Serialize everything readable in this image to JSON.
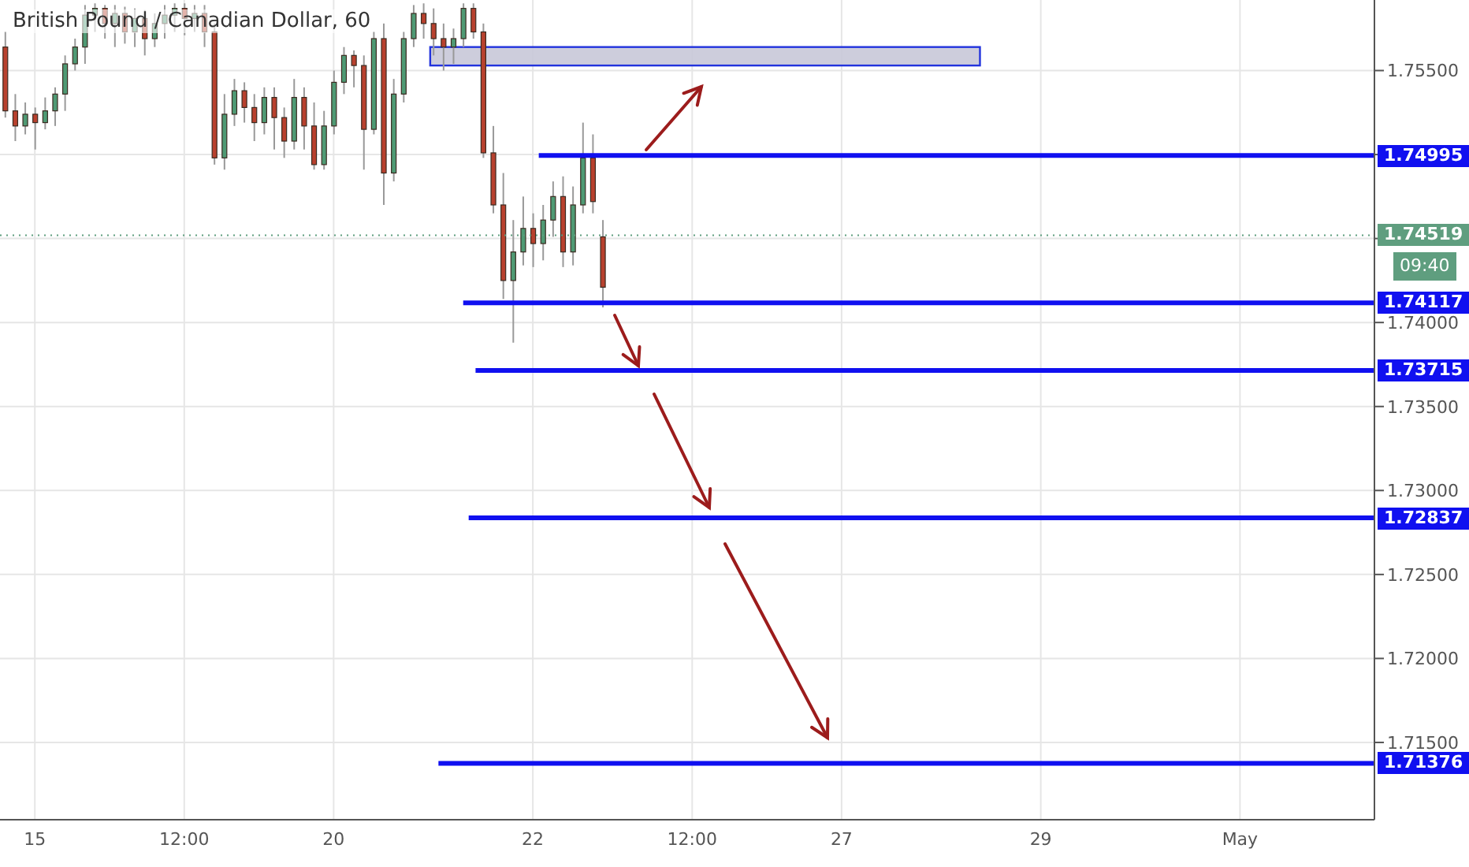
{
  "chart_data": {
    "type": "candlestick",
    "title": "British Pound / Canadian Dollar, 60",
    "categories": [
      null,
      null,
      null,
      "15",
      null,
      null,
      null,
      null,
      null,
      null,
      null,
      null,
      null,
      null,
      null,
      null,
      null,
      null,
      "12:00",
      null,
      null,
      null,
      null,
      null,
      null,
      null,
      null,
      null,
      null,
      null,
      null,
      null,
      null,
      "20",
      null,
      null,
      null,
      null,
      null,
      null,
      null,
      null,
      null,
      null,
      null,
      null,
      null,
      null,
      null,
      null,
      null,
      null,
      null,
      "22",
      null,
      null,
      null,
      null,
      null,
      null,
      null,
      null,
      null,
      null,
      null,
      null,
      null,
      null,
      null,
      "12:00",
      null,
      null,
      null,
      null,
      null,
      null,
      null,
      null,
      null,
      null,
      null,
      null,
      null,
      null,
      "27",
      null,
      null,
      null,
      null,
      null,
      null,
      null,
      null,
      null,
      null,
      null,
      null,
      null,
      null,
      null,
      null,
      null,
      null,
      null,
      "29",
      null,
      null,
      null,
      null,
      null,
      null,
      null,
      null,
      null,
      null,
      null,
      null,
      null,
      null,
      null,
      null,
      null,
      null,
      null,
      "May",
      null,
      null,
      null,
      null,
      null,
      null,
      null,
      null,
      null,
      null,
      null,
      null,
      null
    ],
    "ohlc": [
      [
        1.7564,
        1.7573,
        1.7522,
        1.7526
      ],
      [
        1.7526,
        1.7536,
        1.7508,
        1.7517
      ],
      [
        1.7517,
        1.7531,
        1.7512,
        1.7524
      ],
      [
        1.7524,
        1.7528,
        1.7503,
        1.7519
      ],
      [
        1.7519,
        1.7534,
        1.7515,
        1.7526
      ],
      [
        1.7526,
        1.754,
        1.7517,
        1.7536
      ],
      [
        1.7536,
        1.7559,
        1.7526,
        1.7554
      ],
      [
        1.7554,
        1.7569,
        1.755,
        1.7564
      ],
      [
        1.7564,
        1.7589,
        1.7554,
        1.7583
      ],
      [
        1.7583,
        1.759,
        1.7573,
        1.7587
      ],
      [
        1.7587,
        1.7589,
        1.7569,
        1.7578
      ],
      [
        1.7578,
        1.7589,
        1.7564,
        1.7584
      ],
      [
        1.7584,
        1.7588,
        1.7566,
        1.7573
      ],
      [
        1.7573,
        1.7587,
        1.7564,
        1.7581
      ],
      [
        1.7581,
        1.7586,
        1.7559,
        1.7569
      ],
      [
        1.7569,
        1.7584,
        1.7564,
        1.7578
      ],
      [
        1.7578,
        1.7589,
        1.7569,
        1.7583
      ],
      [
        1.7583,
        1.759,
        1.7573,
        1.7587
      ],
      [
        1.7587,
        1.759,
        1.7571,
        1.7581
      ],
      [
        1.7581,
        1.7589,
        1.7573,
        1.7584
      ],
      [
        1.7584,
        1.7589,
        1.7564,
        1.7573
      ],
      [
        1.7573,
        1.7578,
        1.7494,
        1.7498
      ],
      [
        1.7498,
        1.7536,
        1.7491,
        1.7524
      ],
      [
        1.7524,
        1.7545,
        1.7517,
        1.7538
      ],
      [
        1.7538,
        1.7543,
        1.7519,
        1.7528
      ],
      [
        1.7528,
        1.7536,
        1.7508,
        1.7519
      ],
      [
        1.7519,
        1.754,
        1.7512,
        1.7534
      ],
      [
        1.7534,
        1.754,
        1.7503,
        1.7522
      ],
      [
        1.7522,
        1.7528,
        1.7498,
        1.7508
      ],
      [
        1.7508,
        1.7545,
        1.7503,
        1.7534
      ],
      [
        1.7534,
        1.754,
        1.7503,
        1.7517
      ],
      [
        1.7517,
        1.7531,
        1.7491,
        1.7494
      ],
      [
        1.7494,
        1.7526,
        1.7491,
        1.7517
      ],
      [
        1.7517,
        1.755,
        1.7512,
        1.7543
      ],
      [
        1.7543,
        1.7564,
        1.7536,
        1.7559
      ],
      [
        1.7559,
        1.7562,
        1.754,
        1.7553
      ],
      [
        1.7553,
        1.7559,
        1.7491,
        1.7515
      ],
      [
        1.7515,
        1.7573,
        1.7512,
        1.7569
      ],
      [
        1.7569,
        1.7578,
        1.747,
        1.7489
      ],
      [
        1.7489,
        1.7545,
        1.7484,
        1.7536
      ],
      [
        1.7536,
        1.7573,
        1.7531,
        1.7569
      ],
      [
        1.7569,
        1.7589,
        1.7564,
        1.7584
      ],
      [
        1.7584,
        1.759,
        1.7569,
        1.7578
      ],
      [
        1.7578,
        1.7587,
        1.7559,
        1.7569
      ],
      [
        1.7569,
        1.7578,
        1.755,
        1.7564
      ],
      [
        1.7564,
        1.7575,
        1.7554,
        1.7569
      ],
      [
        1.7569,
        1.759,
        1.7564,
        1.7587
      ],
      [
        1.7587,
        1.759,
        1.7569,
        1.7573
      ],
      [
        1.7573,
        1.7578,
        1.7498,
        1.7501
      ],
      [
        1.7501,
        1.7517,
        1.7465,
        1.747
      ],
      [
        1.747,
        1.7489,
        1.7414,
        1.7425
      ],
      [
        1.7425,
        1.7461,
        1.7388,
        1.7442
      ],
      [
        1.7442,
        1.7475,
        1.7434,
        1.7456
      ],
      [
        1.7456,
        1.7465,
        1.7433,
        1.7447
      ],
      [
        1.7447,
        1.747,
        1.7437,
        1.7461
      ],
      [
        1.7461,
        1.7484,
        1.7451,
        1.7475
      ],
      [
        1.7475,
        1.7487,
        1.7433,
        1.7442
      ],
      [
        1.7442,
        1.7481,
        1.7434,
        1.747
      ],
      [
        1.747,
        1.7519,
        1.7465,
        1.7498
      ],
      [
        1.7498,
        1.7512,
        1.7465,
        1.7472
      ],
      [
        1.7451,
        1.7461,
        1.7409,
        1.7421
      ],
      null,
      null,
      null,
      null,
      null,
      null,
      null,
      null,
      null,
      null,
      null,
      null,
      null,
      null,
      null,
      null,
      null,
      null,
      null,
      null,
      null,
      null,
      null,
      null,
      null,
      null,
      null,
      null,
      null,
      null,
      null,
      null,
      null,
      null,
      null,
      null,
      null,
      null,
      null,
      null,
      null,
      null,
      null,
      null,
      null,
      null,
      null,
      null,
      null,
      null,
      null,
      null,
      null,
      null,
      null,
      null,
      null,
      null,
      null,
      null,
      null,
      null,
      null,
      null,
      null,
      null,
      null,
      null,
      null,
      null,
      null,
      null,
      null,
      null,
      null,
      null,
      null
    ],
    "ylim": [
      1.7104,
      1.7592
    ],
    "yticks": [
      {
        "value": 1.715,
        "label": "1.71500"
      },
      {
        "value": 1.72,
        "label": "1.72000"
      },
      {
        "value": 1.725,
        "label": "1.72500"
      },
      {
        "value": 1.73,
        "label": "1.73000"
      },
      {
        "value": 1.735,
        "label": "1.73500"
      },
      {
        "value": 1.74,
        "label": "1.74000"
      },
      {
        "value": 1.745,
        "label": null
      },
      {
        "value": 1.75,
        "label": null
      },
      {
        "value": 1.755,
        "label": "1.75500"
      }
    ],
    "grid": true,
    "ref_lines": [
      {
        "axis": "y",
        "value": 1.74995,
        "label": "1.74995",
        "color": "#1010f0"
      },
      {
        "axis": "y",
        "value": 1.74117,
        "label": "1.74117",
        "color": "#1010f0"
      },
      {
        "axis": "y",
        "value": 1.73715,
        "label": "1.73715",
        "color": "#1010f0"
      },
      {
        "axis": "y",
        "value": 1.72837,
        "label": "1.72837",
        "color": "#1010f0"
      },
      {
        "axis": "y",
        "value": 1.71376,
        "label": "1.71376",
        "color": "#1010f0"
      },
      {
        "axis": "y",
        "value": 1.74519,
        "label": "1.74519",
        "color": "#5f9e7f",
        "line_style": "dotted"
      }
    ],
    "bands": [
      {
        "axis": "y",
        "from": 1.7553,
        "to": 1.7564,
        "label": null,
        "color": "#c8c8d8"
      }
    ],
    "annotations": [
      "09:40"
    ]
  }
}
